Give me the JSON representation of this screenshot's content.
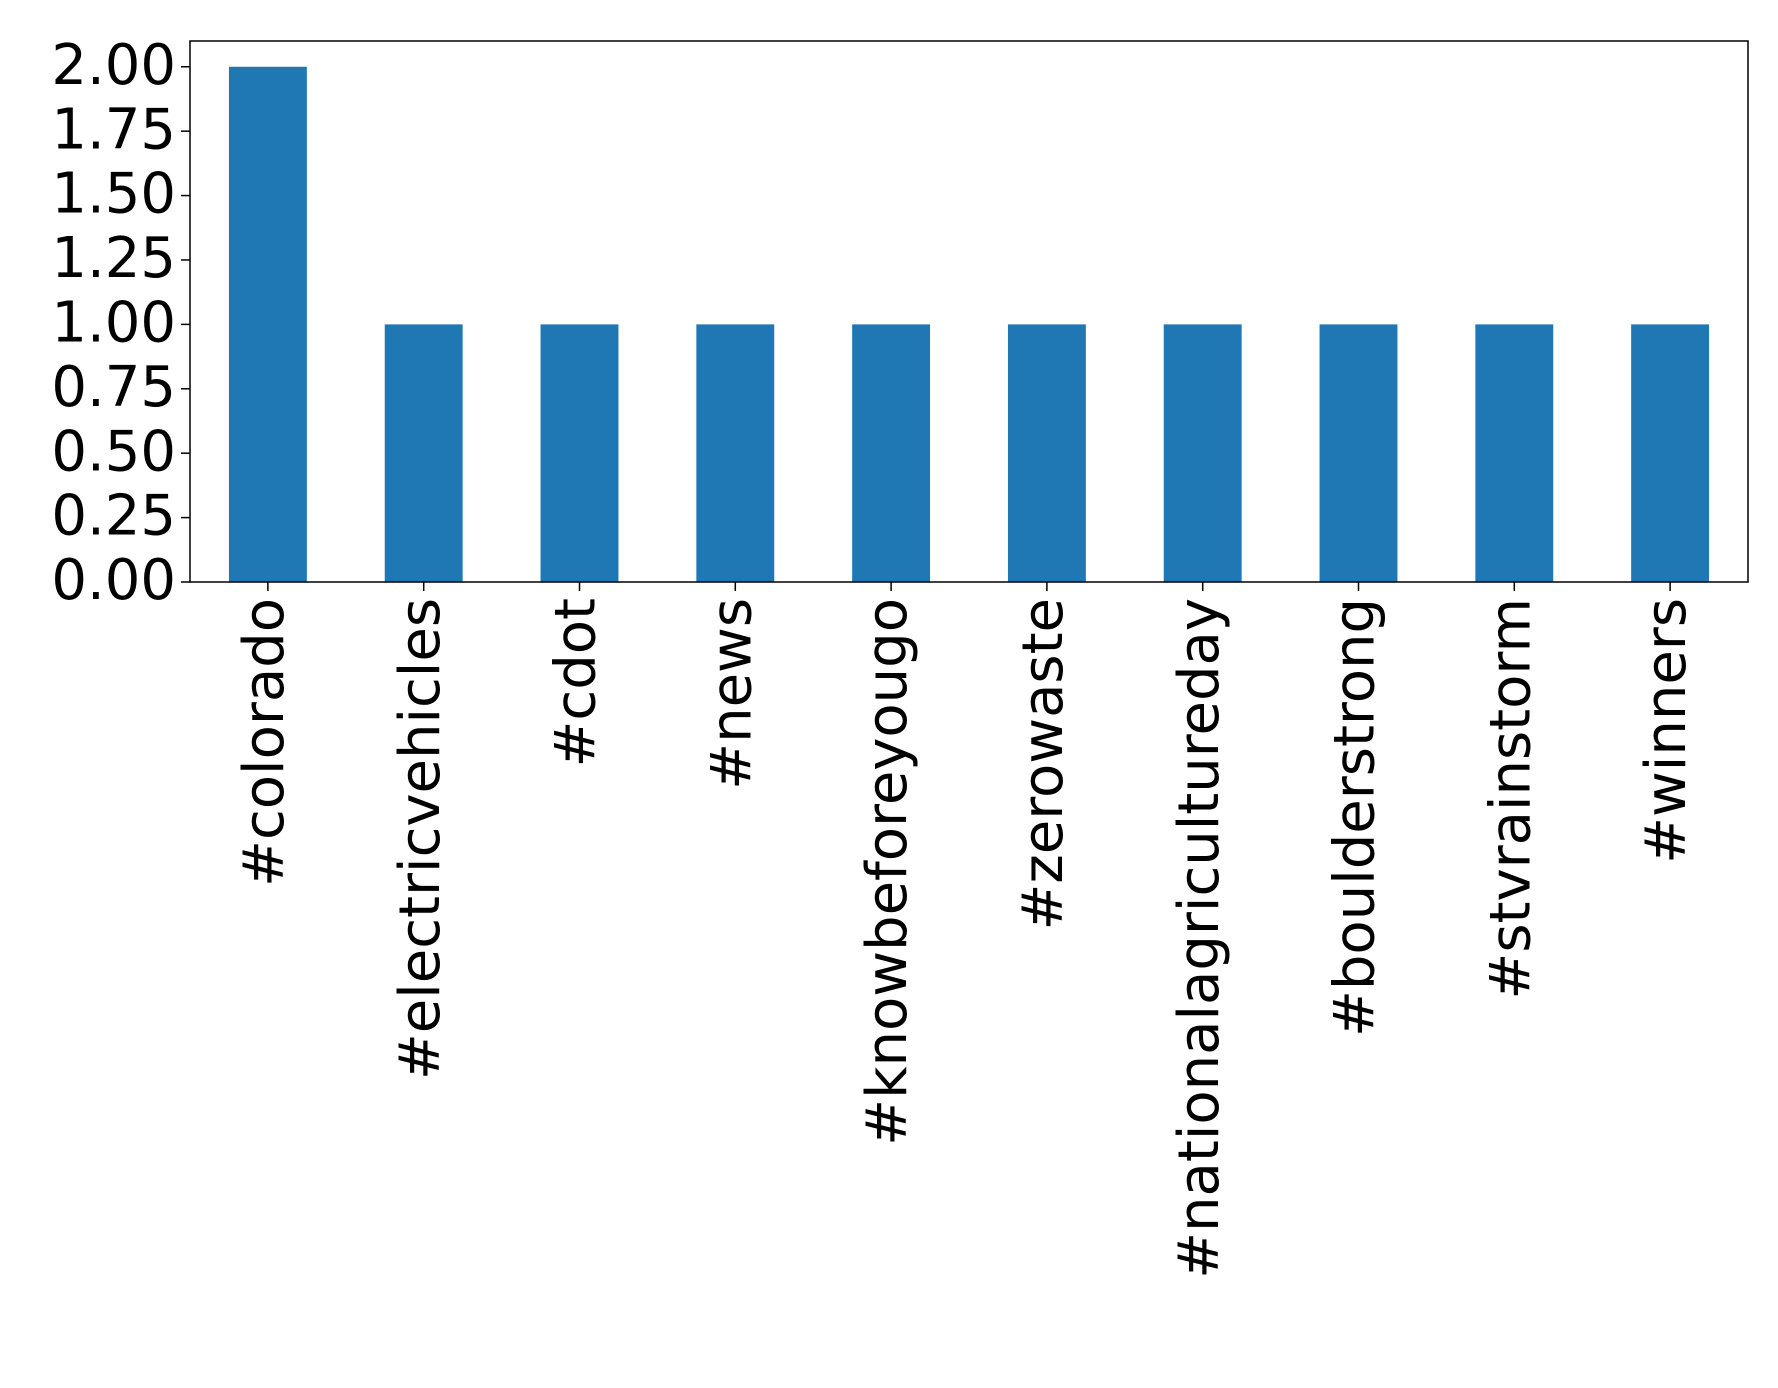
{
  "chart_data": {
    "type": "bar",
    "categories": [
      "#colorado",
      "#electricvehicles",
      "#cdot",
      "#news",
      "#knowbeforeyougo",
      "#zerowaste",
      "#nationalagricultureday",
      "#boulderstrong",
      "#stvrainstorm",
      "#winners"
    ],
    "values": [
      2,
      1,
      1,
      1,
      1,
      1,
      1,
      1,
      1,
      1
    ],
    "color": "#1f77b4",
    "ylim": [
      0,
      2.1
    ],
    "yticks": [
      {
        "value": 0,
        "label": "0.00"
      },
      {
        "value": 0.25,
        "label": "0.25"
      },
      {
        "value": 0.5,
        "label": "0.50"
      },
      {
        "value": 0.75,
        "label": "0.75"
      },
      {
        "value": 1,
        "label": "1.00"
      },
      {
        "value": 1.25,
        "label": "1.25"
      },
      {
        "value": 1.5,
        "label": "1.50"
      },
      {
        "value": 1.75,
        "label": "1.75"
      },
      {
        "value": 2,
        "label": "2.00"
      }
    ],
    "grid": false
  }
}
